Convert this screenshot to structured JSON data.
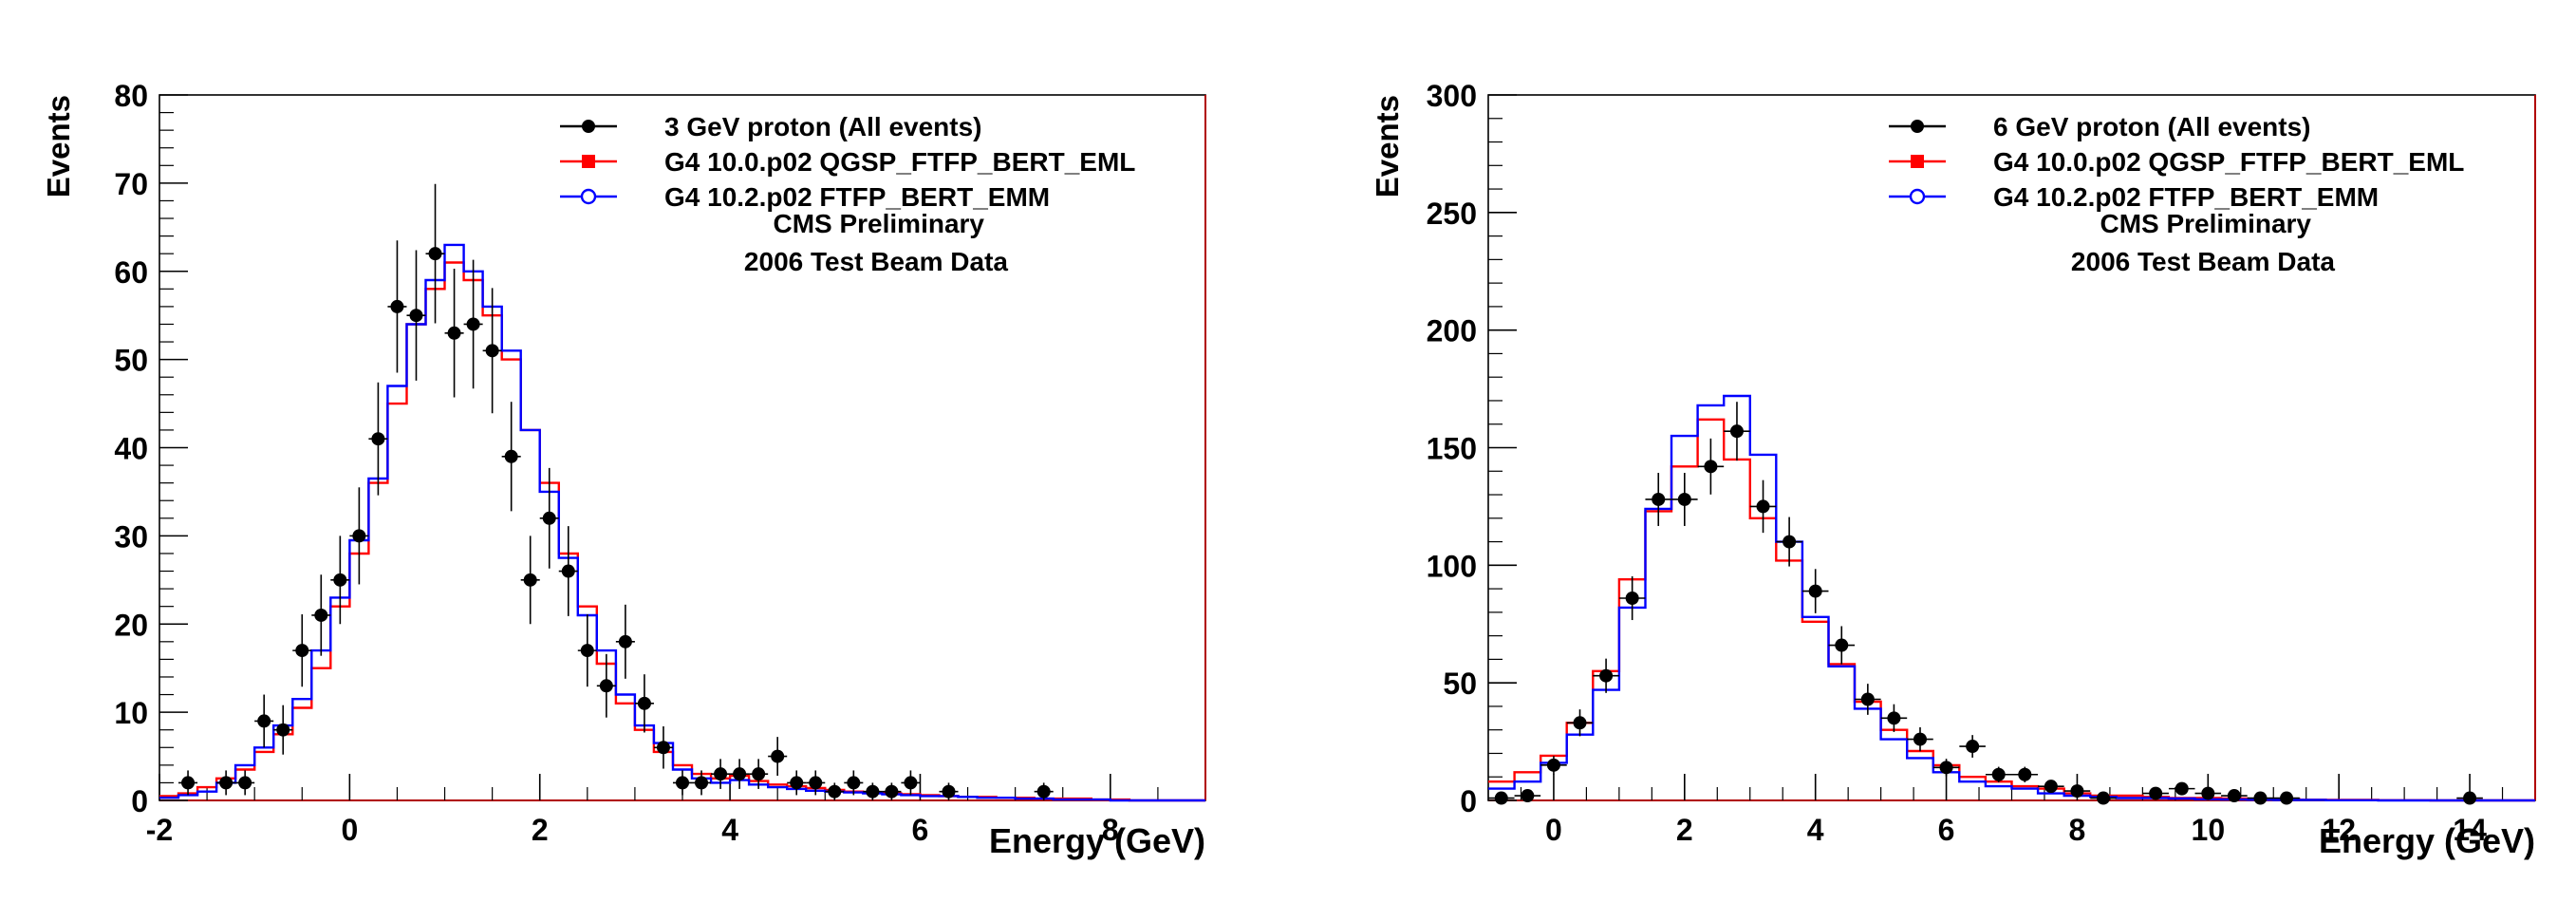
{
  "chart_data": [
    {
      "type": "line",
      "xlabel": "Energy (GeV)",
      "ylabel": "Events",
      "xlim": [
        -2,
        9
      ],
      "ylim": [
        0,
        80
      ],
      "xticks": [
        -2,
        0,
        2,
        4,
        6,
        8
      ],
      "yticks": [
        0,
        10,
        20,
        30,
        40,
        50,
        60,
        70,
        80
      ],
      "legend_position": "top-right",
      "legend": [
        {
          "label": "3 GeV proton (All events)",
          "marker": "filled-circle",
          "color": "#000000"
        },
        {
          "label": "G4 10.0.p02 QGSP_FTFP_BERT_EML",
          "marker": "filled-square",
          "color": "#ff0000"
        },
        {
          "label": "G4 10.2.p02 FTFP_BERT_EMM",
          "marker": "open-circle",
          "color": "#0000ff"
        }
      ],
      "annotations": [
        "CMS Preliminary",
        "2006 Test Beam Data"
      ],
      "bin_edges": [
        -2.0,
        -1.8,
        -1.6,
        -1.4,
        -1.2,
        -1.0,
        -0.8,
        -0.6,
        -0.4,
        -0.2,
        0.0,
        0.2,
        0.4,
        0.6,
        0.8,
        1.0,
        1.2,
        1.4,
        1.6,
        1.8,
        2.0,
        2.2,
        2.4,
        2.6,
        2.8,
        3.0,
        3.2,
        3.4,
        3.6,
        3.8,
        4.0,
        4.2,
        4.4,
        4.6,
        4.8,
        5.0,
        5.2,
        5.4,
        5.6,
        5.8,
        6.0,
        6.2,
        6.4,
        6.6,
        6.8,
        7.0,
        7.2,
        7.4,
        7.6,
        7.8,
        8.0,
        8.2,
        8.4,
        8.6,
        8.8,
        9.0
      ],
      "series": [
        {
          "name": "3 GeV proton (All events)",
          "kind": "points",
          "x": [
            -1.7,
            -1.3,
            -1.1,
            -0.9,
            -0.7,
            -0.5,
            -0.3,
            -0.1,
            0.1,
            0.3,
            0.5,
            0.7,
            0.9,
            1.1,
            1.3,
            1.5,
            1.7,
            1.9,
            2.1,
            2.3,
            2.5,
            2.7,
            2.9,
            3.1,
            3.3,
            3.5,
            3.7,
            3.9,
            4.1,
            4.3,
            4.5,
            4.7,
            4.9,
            5.1,
            5.3,
            5.5,
            5.7,
            5.9,
            6.3,
            7.3
          ],
          "y": [
            2,
            2,
            2,
            9,
            8,
            17,
            21,
            25,
            30,
            41,
            56,
            55,
            62,
            53,
            54,
            51,
            39,
            25,
            32,
            26,
            17,
            13,
            18,
            11,
            6,
            2,
            2,
            3,
            3,
            3,
            5,
            2,
            2,
            1,
            2,
            1,
            1,
            2,
            1,
            1
          ],
          "yerr": [
            1.4,
            1.4,
            1.4,
            3.0,
            2.8,
            4.1,
            4.6,
            5.0,
            5.5,
            6.4,
            7.5,
            7.4,
            7.9,
            7.3,
            7.3,
            7.1,
            6.2,
            5.0,
            5.7,
            5.1,
            4.1,
            3.6,
            4.2,
            3.3,
            2.4,
            1.4,
            1.4,
            1.7,
            1.7,
            1.7,
            2.2,
            1.4,
            1.4,
            1.0,
            1.4,
            1.0,
            1.0,
            1.4,
            1.0,
            1.0
          ]
        },
        {
          "name": "G4 10.0.p02 QGSP_FTFP_BERT_EML",
          "kind": "step",
          "values": [
            0.5,
            0.8,
            1.5,
            2.5,
            3.5,
            5.5,
            7.5,
            10.5,
            15,
            22,
            28,
            36,
            45,
            54,
            58,
            61,
            59,
            55,
            50,
            42,
            36,
            28,
            22,
            15.5,
            11,
            8,
            5.5,
            4,
            3,
            2.5,
            2.8,
            2.2,
            1.8,
            1.6,
            1.4,
            1.2,
            1.0,
            0.9,
            0.8,
            0.7,
            0.6,
            0.5,
            0.4,
            0.4,
            0.3,
            0.3,
            0.2,
            0.2,
            0.2,
            0.1,
            0.1,
            0,
            0,
            0,
            0
          ]
        },
        {
          "name": "G4 10.2.p02 FTFP_BERT_EMM",
          "kind": "step",
          "values": [
            0.3,
            0.6,
            1.0,
            2.0,
            4.0,
            6.0,
            8.5,
            11.5,
            17,
            23,
            29.5,
            36.5,
            47,
            54,
            59,
            63,
            60,
            56,
            51,
            42,
            35,
            27.5,
            21,
            17,
            12,
            8.5,
            6.5,
            3.5,
            2.5,
            2.0,
            2.3,
            1.8,
            1.5,
            1.3,
            1.1,
            1.0,
            0.9,
            0.8,
            0.7,
            0.6,
            0.5,
            0.5,
            0.4,
            0.3,
            0.3,
            0.2,
            0.2,
            0.1,
            0.1,
            0.1,
            0,
            0,
            0,
            0,
            0
          ]
        }
      ]
    },
    {
      "type": "line",
      "xlabel": "Energy (GeV)",
      "ylabel": "Events",
      "xlim": [
        -1,
        15
      ],
      "ylim": [
        0,
        300
      ],
      "xticks": [
        0,
        2,
        4,
        6,
        8,
        10,
        12,
        14
      ],
      "yticks": [
        0,
        50,
        100,
        150,
        200,
        250,
        300
      ],
      "legend_position": "top-right",
      "legend": [
        {
          "label": "6 GeV proton (All events)",
          "marker": "filled-circle",
          "color": "#000000"
        },
        {
          "label": "G4 10.0.p02 QGSP_FTFP_BERT_EML",
          "marker": "filled-square",
          "color": "#ff0000"
        },
        {
          "label": "G4 10.2.p02 FTFP_BERT_EMM",
          "marker": "open-circle",
          "color": "#0000ff"
        }
      ],
      "annotations": [
        "CMS Preliminary",
        "2006 Test Beam Data"
      ],
      "bin_edges": [
        -1.0,
        -0.6,
        -0.2,
        0.2,
        0.6,
        1.0,
        1.4,
        1.8,
        2.2,
        2.6,
        3.0,
        3.4,
        3.8,
        4.2,
        4.6,
        5.0,
        5.4,
        5.8,
        6.2,
        6.6,
        7.0,
        7.4,
        7.8,
        8.2,
        8.6,
        9.0,
        9.4,
        9.8,
        10.2,
        10.6,
        11.0,
        11.4,
        11.8,
        12.2,
        12.6,
        13.0,
        13.4,
        13.8,
        14.2,
        14.6,
        15.0
      ],
      "series": [
        {
          "name": "6 GeV proton (All events)",
          "kind": "points",
          "x": [
            -0.8,
            -0.4,
            0.0,
            0.4,
            0.8,
            1.2,
            1.6,
            2.0,
            2.4,
            2.8,
            3.2,
            3.6,
            4.0,
            4.4,
            4.8,
            5.2,
            5.6,
            6.0,
            6.4,
            6.8,
            7.2,
            7.6,
            8.0,
            8.4,
            9.2,
            9.6,
            10.0,
            10.4,
            10.8,
            11.2,
            14.0
          ],
          "y": [
            1,
            2,
            15,
            33,
            53,
            86,
            128,
            128,
            142,
            157,
            125,
            110,
            89,
            66,
            43,
            35,
            26,
            14,
            23,
            11,
            11,
            6,
            4,
            1,
            3,
            5,
            3,
            2,
            1,
            1,
            1
          ],
          "yerr": [
            1,
            1.4,
            3.9,
            5.7,
            7.3,
            9.3,
            11.3,
            11.3,
            11.9,
            12.5,
            11.2,
            10.5,
            9.4,
            8.1,
            6.6,
            5.9,
            5.1,
            3.7,
            4.8,
            3.3,
            3.3,
            2.4,
            2,
            1,
            1.7,
            2.2,
            1.7,
            1.4,
            1,
            1,
            1
          ]
        },
        {
          "name": "G4 10.0.p02 QGSP_FTFP_BERT_EML",
          "kind": "step",
          "values": [
            8,
            12,
            19,
            33,
            55,
            94,
            123,
            142,
            162,
            145,
            120,
            102,
            76,
            58,
            42,
            30,
            21,
            15,
            10,
            8,
            6,
            5,
            3,
            2,
            2,
            1.5,
            1,
            1,
            0.8,
            0.5,
            0.5,
            0.3,
            0.2,
            0.2,
            0.1,
            0.1,
            0,
            0,
            0,
            0
          ]
        },
        {
          "name": "G4 10.2.p02 FTFP_BERT_EMM",
          "kind": "step",
          "values": [
            5,
            8,
            16,
            28,
            47,
            82,
            124,
            155,
            168,
            172,
            147,
            110,
            78,
            57,
            39,
            26,
            18,
            12,
            8,
            6,
            5,
            3,
            2,
            1.5,
            1,
            1,
            0.8,
            0.5,
            0.4,
            0.3,
            0.2,
            0.2,
            0.1,
            0.1,
            0,
            0,
            0,
            0,
            0,
            0
          ]
        }
      ]
    }
  ]
}
